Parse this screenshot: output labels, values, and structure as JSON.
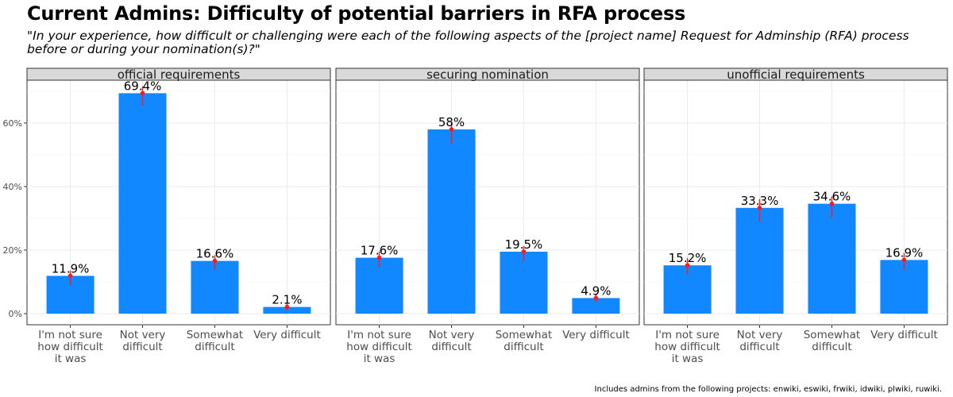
{
  "title": "Current Admins: Difficulty of potential barriers in RFA process",
  "subtitle": "\"In your experience, how difficult or challenging were each of the following aspects of the [project name] Request for Adminship (RFA) process before or during your nomination(s)?\"",
  "caption": "Includes admins from the following projects: enwiki, eswiki, frwiki, idwiki, plwiki, ruwiki.",
  "colors": {
    "bar": "#1188ff",
    "error": "#ff1a1a",
    "strip": "#d9d9d9"
  },
  "chart_data": {
    "type": "bar",
    "facet_by": "barrier",
    "categories": [
      [
        "I'm not sure",
        "how difficult",
        "it was"
      ],
      [
        "Not very",
        "difficult"
      ],
      [
        "Somewhat",
        "difficult"
      ],
      [
        "Very difficult"
      ]
    ],
    "y_ticks": [
      0,
      20,
      40,
      60
    ],
    "y_tick_labels": [
      "0%",
      "20%",
      "40%",
      "60%"
    ],
    "ylim": [
      -3.5,
      73.5
    ],
    "xlabel": "",
    "ylabel": "",
    "panels": [
      {
        "name": "official requirements",
        "values": [
          11.9,
          69.4,
          16.6,
          2.1
        ],
        "labels": [
          "11.9%",
          "69.4%",
          "16.6%",
          "2.1%"
        ],
        "error_low": [
          9.0,
          65.5,
          13.8,
          1.2
        ],
        "error_high": [
          13.6,
          71.5,
          18.4,
          3.2
        ]
      },
      {
        "name": "securing nomination",
        "values": [
          17.6,
          58.0,
          19.5,
          4.9
        ],
        "labels": [
          "17.6%",
          "58%",
          "19.5%",
          "4.9%"
        ],
        "error_low": [
          14.6,
          53.5,
          16.5,
          3.6
        ],
        "error_high": [
          19.6,
          60.3,
          21.3,
          6.3
        ]
      },
      {
        "name": "unofficial requirements",
        "values": [
          15.2,
          33.3,
          34.6,
          16.9
        ],
        "labels": [
          "15.2%",
          "33.3%",
          "34.6%",
          "16.9%"
        ],
        "error_low": [
          12.3,
          29.0,
          30.2,
          13.8
        ],
        "error_high": [
          17.5,
          36.1,
          36.9,
          19.1
        ]
      }
    ]
  }
}
